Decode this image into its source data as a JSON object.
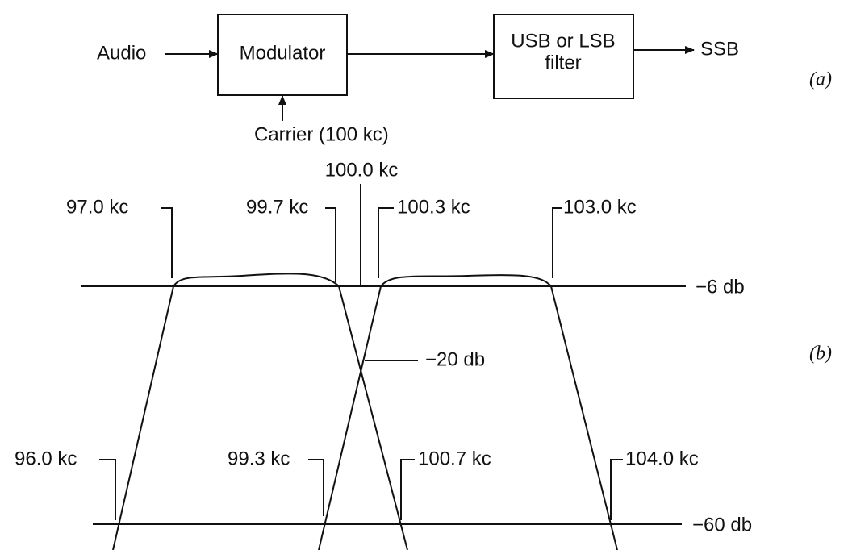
{
  "block_diagram": {
    "input": "Audio",
    "modulator": "Modulator",
    "filter": [
      "USB or LSB",
      "filter"
    ],
    "output": "SSB",
    "carrier": "Carrier (100 kc)",
    "label": "(a)"
  },
  "response": {
    "carrier_freq": "100.0 kc",
    "top_labels": [
      "97.0 kc",
      "99.7 kc",
      "100.3 kc",
      "103.0 kc"
    ],
    "bottom_labels": [
      "96.0 kc",
      "99.3 kc",
      "100.7 kc",
      "104.0 kc"
    ],
    "levels": [
      "−6 db",
      "−20 db",
      "−60 db"
    ],
    "label": "(b)"
  }
}
